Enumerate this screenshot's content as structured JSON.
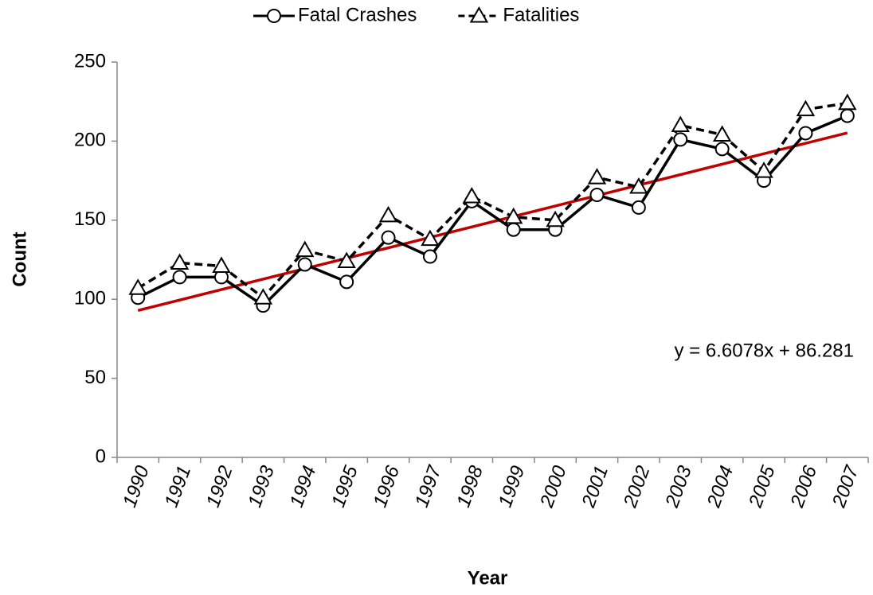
{
  "chart_data": {
    "type": "line",
    "categories": [
      "1990",
      "1991",
      "1992",
      "1993",
      "1994",
      "1995",
      "1996",
      "1997",
      "1998",
      "1999",
      "2000",
      "2001",
      "2002",
      "2003",
      "2004",
      "2005",
      "2006",
      "2007"
    ],
    "series": [
      {
        "name": "Fatal Crashes",
        "color": "#000000",
        "line_style": "solid",
        "marker": "circle",
        "values": [
          101,
          114,
          114,
          96,
          122,
          111,
          139,
          127,
          162,
          144,
          144,
          166,
          158,
          201,
          195,
          175,
          205,
          216
        ]
      },
      {
        "name": "Fatalities",
        "color": "#000000",
        "line_style": "dashed",
        "marker": "triangle",
        "values": [
          107,
          123,
          121,
          101,
          131,
          124,
          153,
          138,
          165,
          152,
          150,
          177,
          171,
          210,
          204,
          181,
          220,
          224
        ]
      }
    ],
    "trendline": {
      "slope": 6.6078,
      "intercept": 86.281,
      "color": "#c00000",
      "label": "y = 6.6078x + 86.281"
    },
    "xlabel": "Year",
    "ylabel": "Count",
    "ylim": [
      0,
      250
    ],
    "yticks": [
      0,
      50,
      100,
      150,
      200,
      250
    ],
    "grid": false,
    "legend": "top"
  }
}
